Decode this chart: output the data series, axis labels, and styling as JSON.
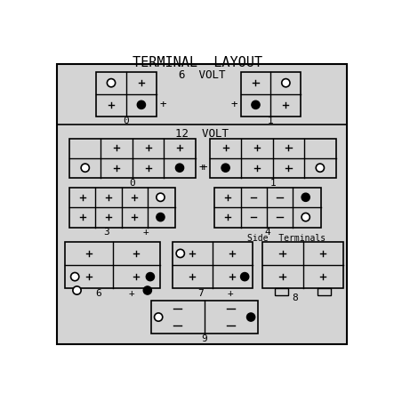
{
  "title": "TERMINAL  LAYOUT",
  "bg_outer": "#ffffff",
  "bg_inner": "#d4d4d4",
  "lc": "black",
  "section_6v": "6  VOLT",
  "section_12v": "12  VOLT",
  "side_terminals": "Side  Terminals",
  "figw": 4.43,
  "figh": 4.43,
  "dpi": 100
}
